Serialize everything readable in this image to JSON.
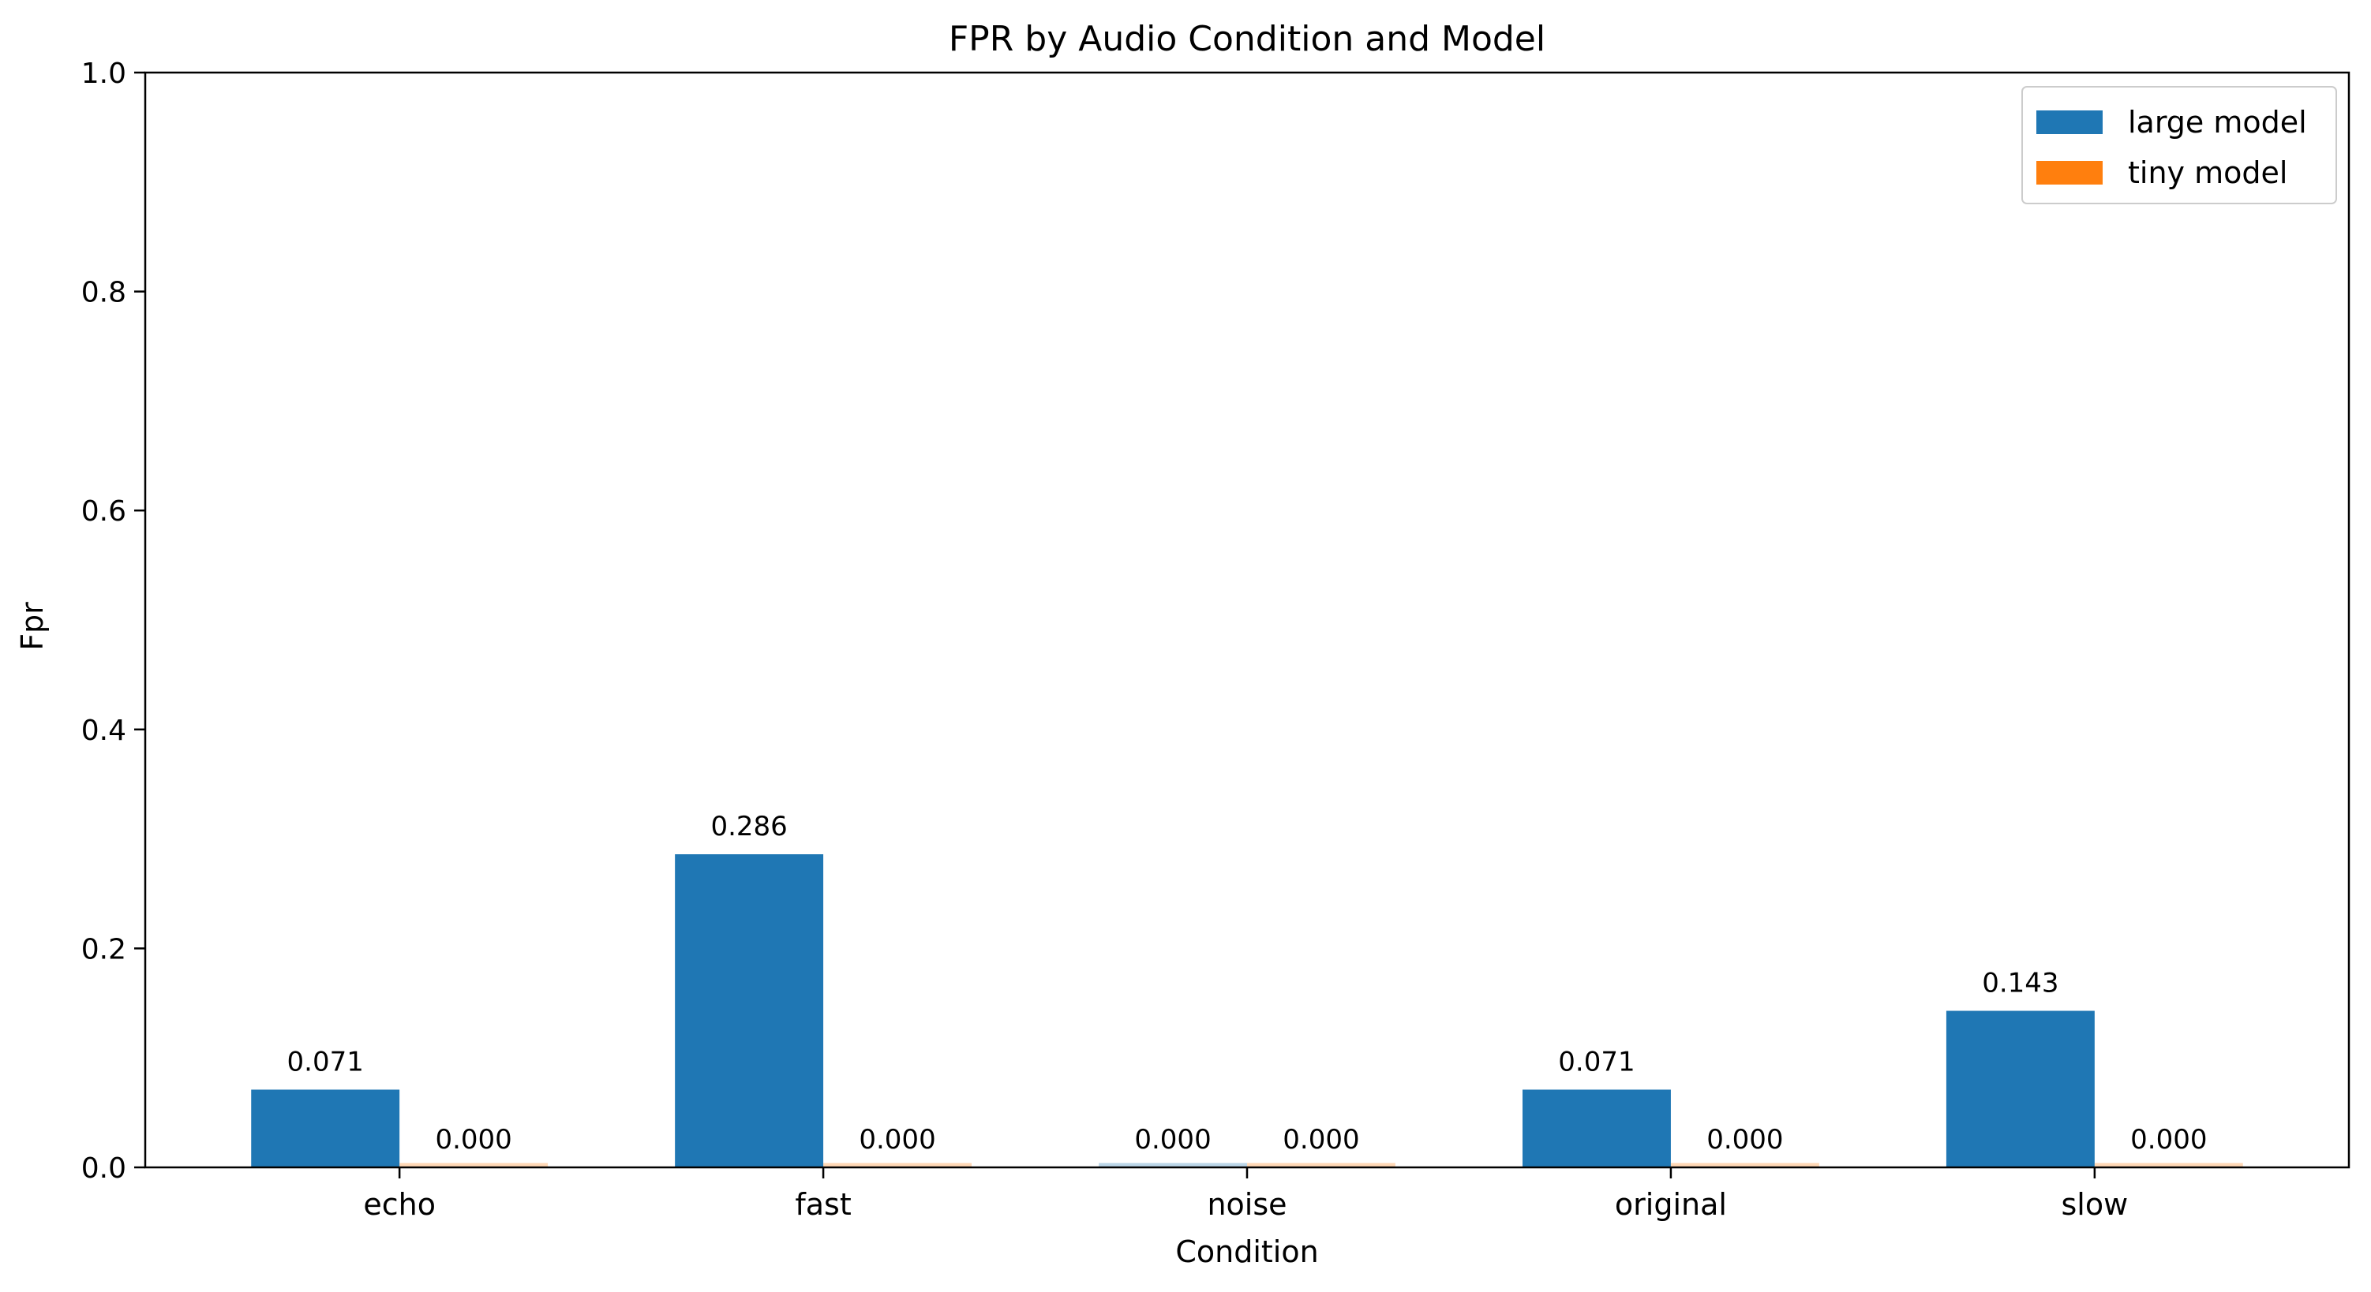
{
  "chart_data": {
    "type": "bar",
    "title": "FPR by Audio Condition and Model",
    "xlabel": "Condition",
    "ylabel": "Fpr",
    "ylim": [
      0,
      1.0
    ],
    "yticks": [
      "0.0",
      "0.2",
      "0.4",
      "0.6",
      "0.8",
      "1.0"
    ],
    "categories": [
      "echo",
      "fast",
      "noise",
      "original",
      "slow"
    ],
    "series": [
      {
        "name": "large model",
        "color": "#1f77b4",
        "values": [
          0.071,
          0.286,
          0.0,
          0.071,
          0.143
        ],
        "labels": [
          "0.071",
          "0.286",
          "0.000",
          "0.071",
          "0.143"
        ]
      },
      {
        "name": "tiny model",
        "color": "#ff7f0e",
        "values": [
          0.0,
          0.0,
          0.0,
          0.0,
          0.0
        ],
        "labels": [
          "0.000",
          "0.000",
          "0.000",
          "0.000",
          "0.000"
        ]
      }
    ],
    "grid": false,
    "legend_position": "top-right"
  }
}
